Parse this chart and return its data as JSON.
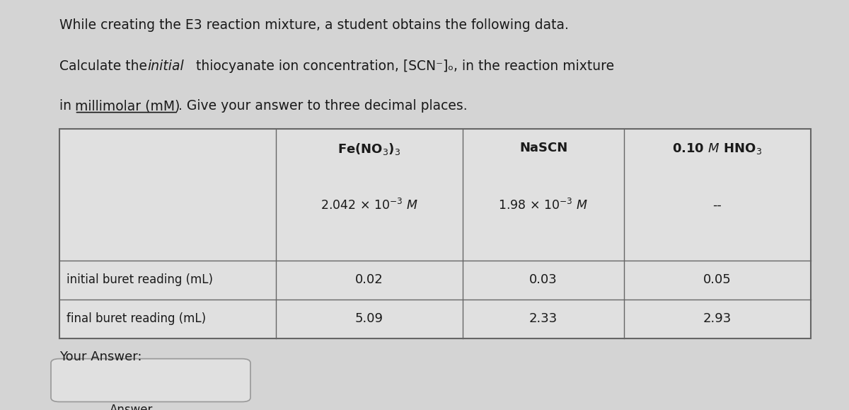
{
  "title_line1": "While creating the E3 reaction mixture, a student obtains the following data.",
  "col_headers": [
    "Fe(NO3)3",
    "NaSCN",
    "0.10 M HNO3"
  ],
  "concentration_fe": "2.042 x 10-3 M",
  "concentration_nascn": "1.98 x 10-3 M",
  "concentration_hno3": "--",
  "row_labels": [
    "initial buret reading (mL)",
    "final buret reading (mL)"
  ],
  "table_data": [
    [
      "0.02",
      "0.03",
      "0.05"
    ],
    [
      "5.09",
      "2.33",
      "2.93"
    ]
  ],
  "your_answer_label": "Your Answer:",
  "answer_label": "Answer",
  "bg_color": "#d4d4d4",
  "table_bg": "#e0e0e0",
  "text_color": "#1a1a1a",
  "border_color": "#666666"
}
